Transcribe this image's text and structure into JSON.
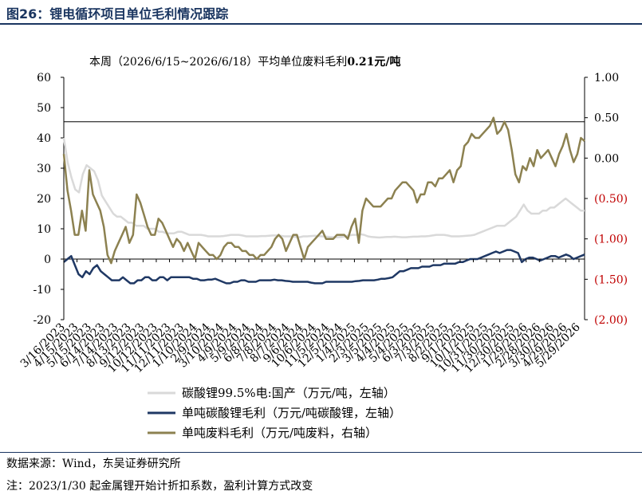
{
  "figure": {
    "title": "图26：锂电循环项目单位毛利情况跟踪",
    "source_note": "数据来源：Wind，东吴证券研究所",
    "footnote": "注：2023/1/30 起金属锂开始计折扣系数，盈利计算方式改变"
  },
  "colors": {
    "title": "#1a3560",
    "carbonate_price": "#d9d9d9",
    "unit_margin": "#1f3864",
    "scrap_margin": "#8c8150",
    "negative_tick": "#c00000"
  },
  "chart_data": {
    "type": "line",
    "annotation": {
      "prefix": "本周（2026/6/15~2026/6/18）平均单位废料毛利",
      "value_text": "0.21元/吨"
    },
    "x_tick_labels": [
      "3/16/2023",
      "4/15/2023",
      "5/15/2023",
      "6/14/2023",
      "7/14/2023",
      "8/13/2023",
      "9/12/2023",
      "10/12/2023",
      "11/11/2023",
      "12/11/2023",
      "1/10/2024",
      "2/9/2024",
      "3/10/2024",
      "4/9/2024",
      "5/9/2024",
      "6/8/2024",
      "7/8/2024",
      "8/7/2024",
      "9/6/2024",
      "10/6/2024",
      "11/5/2024",
      "12/5/2024",
      "1/4/2025",
      "2/3/2025",
      "3/5/2025",
      "4/4/2025",
      "5/4/2025",
      "6/3/2025",
      "7/3/2025",
      "8/2/2025",
      "9/1/2025",
      "10/1/2025",
      "10/31/2025",
      "11/30/2025",
      "12/30/2025",
      "1/29/2026",
      "2/28/2026",
      "3/30/2026",
      "4/29/2026",
      "5/29/2026"
    ],
    "left_axis": {
      "ylim": [
        -20,
        60
      ],
      "ticks": [
        "60",
        "50",
        "40",
        "30",
        "20",
        "10",
        "0",
        "-10",
        "-20"
      ]
    },
    "right_axis": {
      "ylim": [
        -2.0,
        1.0
      ],
      "ticks": [
        "1.00",
        "0.50",
        "0.00",
        "(0.50)",
        "(1.00)",
        "(1.50)",
        "(2.00)"
      ]
    },
    "series": [
      {
        "name": "碳酸锂99.5%电:国产（万元/吨，左轴）",
        "axis": "left",
        "color_key": "carbonate_price",
        "values": [
          40,
          32,
          27,
          23,
          22,
          28,
          31,
          30,
          29,
          26,
          21,
          19,
          17,
          15,
          14,
          14,
          13,
          12,
          12,
          11,
          11,
          11,
          10,
          10,
          10,
          9,
          9,
          8.5,
          8.5,
          8.5,
          9,
          9,
          8.5,
          8,
          8,
          8,
          8,
          7.8,
          7.5,
          7.5,
          7.5,
          7.5,
          7.6,
          7.8,
          8,
          8,
          8,
          7.8,
          7.5,
          7.5,
          7.5,
          7.5,
          7.6,
          7.6,
          7.7,
          7.8,
          7.8,
          7.7,
          7.5,
          7.5,
          7.5,
          7.3,
          7.2,
          7.5,
          7.5,
          7.6,
          7.7,
          7.6,
          7.5,
          7.4,
          7.3,
          7.2,
          7.2,
          7.3,
          7.5,
          7.8,
          8,
          8,
          8.2,
          8,
          7.5,
          7.3,
          7.2,
          7.1,
          7.2,
          7.3,
          7.3,
          7.4,
          7.3,
          7.2,
          7.2,
          7.3,
          7.4,
          7.4,
          7.5,
          7.5,
          7.6,
          7.8,
          8,
          8,
          8,
          7.8,
          7.5,
          7.5,
          7.5,
          7.6,
          7.7,
          7.8,
          8,
          8.5,
          9,
          9.5,
          10,
          10.5,
          11,
          11,
          11,
          12,
          13,
          14,
          16,
          18,
          16,
          15,
          15,
          15,
          16,
          16,
          17,
          17,
          18,
          19,
          20,
          19,
          18,
          17,
          16,
          16
        ]
      },
      {
        "name": "单吨碳酸锂毛利（万元/吨碳酸锂，左轴）",
        "axis": "left",
        "color_key": "unit_margin",
        "values": [
          -1,
          0,
          1,
          -2,
          -5,
          -6,
          -4,
          -5,
          -3,
          -2,
          -4,
          -5,
          -6,
          -7,
          -7,
          -7,
          -6,
          -7,
          -8,
          -8,
          -7,
          -7,
          -6,
          -6,
          -7,
          -7,
          -6,
          -6,
          -7,
          -6,
          -6,
          -6,
          -6,
          -6,
          -6,
          -6.5,
          -6.5,
          -7,
          -7,
          -6.8,
          -6.8,
          -6.5,
          -7,
          -7.5,
          -8,
          -8,
          -7.5,
          -7.5,
          -7,
          -7,
          -7.5,
          -7.5,
          -7.5,
          -7,
          -7,
          -7,
          -7,
          -6.8,
          -7,
          -7,
          -7.2,
          -7.3,
          -7.5,
          -7.5,
          -7.5,
          -7.5,
          -7.5,
          -7.8,
          -8,
          -8,
          -8,
          -7.5,
          -7.5,
          -7.5,
          -7.5,
          -7.5,
          -7.5,
          -7.5,
          -7.5,
          -7.3,
          -7.2,
          -7,
          -7,
          -7,
          -7,
          -6.8,
          -6.5,
          -6.5,
          -6.3,
          -6,
          -5,
          -4,
          -4,
          -3.5,
          -3,
          -3,
          -3,
          -2.5,
          -2.5,
          -2.5,
          -2,
          -2,
          -2,
          -1.5,
          -1.5,
          -1.5,
          -1.5,
          -1,
          -1,
          -0.5,
          0,
          0,
          0,
          0.5,
          1,
          1.5,
          2,
          2.5,
          2,
          2.5,
          3,
          3,
          2.5,
          2,
          -1,
          0,
          0.5,
          0.5,
          0,
          -0.5,
          0,
          0.5,
          1,
          1,
          0.5,
          1,
          1.5,
          1,
          0,
          0.5,
          1,
          1.5
        ]
      },
      {
        "name": "单吨废料毛利（万元/吨废料，右轴）",
        "axis": "right",
        "color_key": "scrap_margin",
        "values": [
          0.05,
          -0.4,
          -0.65,
          -0.95,
          -0.95,
          -0.65,
          -0.9,
          -0.15,
          -0.45,
          -0.55,
          -0.65,
          -0.85,
          -1.2,
          -1.3,
          -1.15,
          -1.05,
          -0.95,
          -0.85,
          -1.05,
          -0.95,
          -0.45,
          -0.55,
          -0.7,
          -0.85,
          -0.95,
          -0.95,
          -0.75,
          -0.8,
          -0.9,
          -1.0,
          -1.1,
          -1.0,
          -1.05,
          -1.15,
          -1.05,
          -1.15,
          -1.25,
          -1.05,
          -1.1,
          -1.15,
          -1.2,
          -1.2,
          -1.25,
          -1.2,
          -1.1,
          -1.05,
          -1.05,
          -1.1,
          -1.1,
          -1.15,
          -1.15,
          -1.2,
          -1.2,
          -1.25,
          -1.2,
          -1.2,
          -1.15,
          -1.1,
          -1.0,
          -0.95,
          -1.0,
          -1.15,
          -1.05,
          -0.95,
          -0.95,
          -1.1,
          -1.25,
          -1.1,
          -1.05,
          -1.0,
          -0.95,
          -0.9,
          -1.0,
          -1.0,
          -1.0,
          -0.95,
          -0.95,
          -0.95,
          -1.0,
          -0.85,
          -0.75,
          -1.05,
          -0.65,
          -0.5,
          -0.55,
          -0.6,
          -0.6,
          -0.6,
          -0.55,
          -0.5,
          -0.5,
          -0.4,
          -0.35,
          -0.3,
          -0.3,
          -0.35,
          -0.4,
          -0.55,
          -0.45,
          -0.45,
          -0.3,
          -0.3,
          -0.35,
          -0.25,
          -0.25,
          -0.2,
          -0.15,
          -0.3,
          -0.15,
          -0.1,
          0.15,
          0.2,
          0.3,
          0.25,
          0.25,
          0.3,
          0.35,
          0.4,
          0.5,
          0.3,
          0.35,
          0.45,
          0.35,
          0.1,
          -0.2,
          -0.3,
          -0.1,
          -0.15,
          0.0,
          -0.1,
          0.1,
          0.0,
          0.05,
          0.1,
          0.0,
          -0.1,
          0.05,
          0.15,
          0.3,
          0.1,
          -0.05,
          0.05,
          0.25,
          0.21
        ]
      }
    ],
    "legend": {
      "position": "bottom"
    },
    "grid": false
  }
}
